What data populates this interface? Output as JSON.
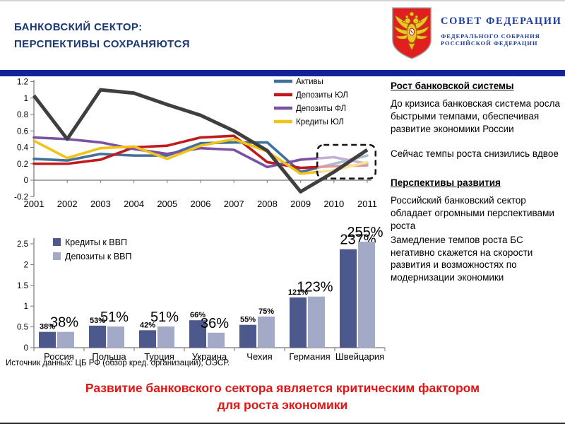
{
  "header": {
    "title_line1": "БАНКОВСКИЙ СЕКТОР:",
    "title_line2": "ПЕРСПЕКТИВЫ СОХРАНЯЮТСЯ",
    "org_name": "СОВЕТ ФЕДЕРАЦИИ",
    "org_sub1": "ФЕДЕРАЛЬНОГО СОБРАНИЯ",
    "org_sub2": "РОССИЙСКОЙ ФЕДЕРАЦИИ",
    "emblem_icon": "russia-coat-of-arms",
    "accent_color": "#13239a"
  },
  "chart_data": [
    {
      "type": "line",
      "x": [
        2001,
        2002,
        2003,
        2004,
        2005,
        2006,
        2007,
        2008,
        2009,
        2010,
        2011
      ],
      "ylim": [
        -0.2,
        1.2
      ],
      "ytick_values": [
        1.2,
        1,
        0.8,
        0.6,
        0.4,
        0.2,
        0,
        -0.2
      ],
      "ytick_labels": [
        "1.2",
        "1",
        "0.8",
        "0.6",
        "0.4",
        "0.2",
        "0",
        "-0.2"
      ],
      "legend_position": "top-right",
      "grid": false,
      "series": [
        {
          "name": "Активы",
          "color": "#40719c",
          "in_legend": true,
          "values": [
            0.26,
            0.24,
            0.32,
            0.3,
            0.3,
            0.45,
            0.46,
            0.46,
            0.1,
            0.2,
            0.3
          ]
        },
        {
          "name": "Депозиты ЮЛ",
          "color": "#c01a1f",
          "in_legend": true,
          "values": [
            0.2,
            0.2,
            0.25,
            0.4,
            0.42,
            0.52,
            0.54,
            0.22,
            0.15,
            0.17,
            0.18
          ]
        },
        {
          "name": "Депозиты ФЛ",
          "color": "#7b52a3",
          "in_legend": true,
          "values": [
            0.52,
            0.5,
            0.46,
            0.38,
            0.32,
            0.39,
            0.37,
            0.16,
            0.25,
            0.28,
            0.2
          ]
        },
        {
          "name": "Кредиты ЮЛ",
          "color": "#f3c217",
          "in_legend": true,
          "values": [
            0.48,
            0.27,
            0.39,
            0.41,
            0.26,
            0.42,
            0.5,
            0.35,
            0.08,
            0.12,
            0.22
          ]
        },
        {
          "name": "",
          "color": "#3f3f3f",
          "in_legend": false,
          "values": [
            1.03,
            0.5,
            1.1,
            1.06,
            0.92,
            0.79,
            0.6,
            0.36,
            -0.14,
            0.1,
            0.37
          ]
        }
      ],
      "highlight_box": {
        "x_from": 2009.5,
        "x_to": 2011.25,
        "y_from": 0.02,
        "y_to": 0.43
      }
    },
    {
      "type": "bar",
      "categories": [
        "Россия",
        "Польша",
        "Турция",
        "Украина",
        "Чехия",
        "Германия",
        "Швейцария"
      ],
      "ytick_values": [
        0,
        0.5,
        1,
        1.5,
        2,
        2.5
      ],
      "ytick_labels": [
        "0",
        "0.5",
        "1",
        "1.5",
        "2",
        "2.5"
      ],
      "ylim": [
        0,
        2.75
      ],
      "grid": false,
      "legend_position": "top-left",
      "series": [
        {
          "name": "Кредиты к ВВП",
          "color": "#4d598c",
          "values": [
            0.38,
            0.53,
            0.42,
            0.66,
            0.55,
            1.21,
            2.37
          ],
          "labels": [
            "38%",
            "53%",
            "42%",
            "66%",
            "55%",
            "121%",
            "237%"
          ],
          "label_styles": [
            "small",
            "small",
            "small",
            "small",
            "small",
            "small",
            "big"
          ]
        },
        {
          "name": "Депозиты к ВВП",
          "color": "#a3aac8",
          "values": [
            0.38,
            0.51,
            0.51,
            0.36,
            0.75,
            1.23,
            2.55
          ],
          "labels": [
            "38%",
            "51%",
            "51%",
            "36%",
            "75%",
            "123%",
            "255%"
          ],
          "label_styles": [
            "big",
            "big",
            "big",
            "big",
            "small",
            "big",
            "big"
          ]
        }
      ],
      "source": "Источник данных: ЦБ РФ (обзор кред. организаций), ОЭСР."
    }
  ],
  "sidebar": {
    "section1": {
      "heading": "Рост банковской системы",
      "para1": "До кризиса банковская система росла быстрыми темпами, обеспечивая развитие экономики России",
      "para2": "Сейчас темпы роста снизились вдвое"
    },
    "section2": {
      "heading": "Перспективы развития",
      "para1": "Российский банковский сектор обладает огромными перспективами роста",
      "para2": "Замедление темпов роста БС негативно скажется на скорости развития и возможностях по модернизации экономики"
    }
  },
  "footer": {
    "message_line1": "Развитие банковского сектора является критическим фактором",
    "message_line2": "для роста экономики",
    "color": "#e31414"
  }
}
